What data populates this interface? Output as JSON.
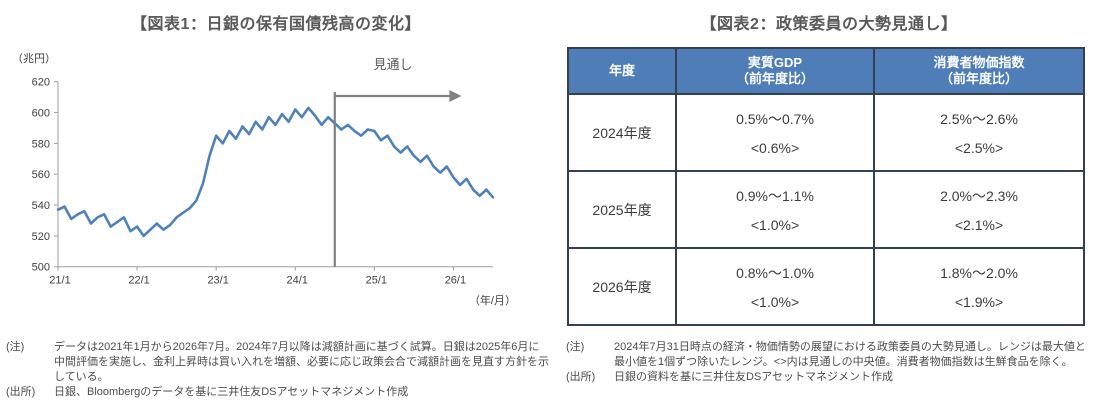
{
  "chart_data": [
    {
      "type": "line",
      "title": "【図表1：日銀の保有国債残高の変化】",
      "ylabel": "（兆円）",
      "xlabel": "（年/月）",
      "ylim": [
        500,
        620
      ],
      "ytick_step": 20,
      "x_ticks": [
        "21/1",
        "22/1",
        "23/1",
        "24/1",
        "25/1",
        "26/1"
      ],
      "x_start": "2021/1",
      "x_end": "2026/7",
      "grid": "off",
      "legend": "none",
      "forecast_label": "見通し",
      "forecast_start": "2024/8",
      "divider_index": 42,
      "line_color": "#4F81BD",
      "divider_color": "#808080",
      "series": [
        {
          "name": "日銀の保有国債残高",
          "values": [
            537,
            539,
            531,
            534,
            536,
            528,
            532,
            534,
            526,
            529,
            532,
            523,
            526,
            520,
            524,
            528,
            524,
            527,
            532,
            535,
            538,
            543,
            554,
            572,
            585,
            580,
            588,
            583,
            591,
            586,
            594,
            589,
            597,
            592,
            599,
            594,
            602,
            597,
            603,
            598,
            592,
            597,
            593,
            589,
            592,
            588,
            585,
            589,
            588,
            582,
            585,
            578,
            574,
            578,
            572,
            568,
            572,
            565,
            561,
            565,
            558,
            553,
            557,
            550,
            546,
            550,
            545
          ]
        }
      ]
    },
    {
      "type": "table",
      "title": "【図表2：政策委員の大勢見通し】",
      "header_bg": "#4E7DB7",
      "columns": [
        "年度",
        "実質GDP\n（前年度比）",
        "消費者物価指数\n（前年度比）"
      ],
      "rows": [
        [
          "2024年度",
          "0.5%～0.7%",
          "<0.6%>",
          "2.5%～2.6%",
          "<2.5%>"
        ],
        [
          "2025年度",
          "0.9%～1.1%",
          "<1.0%>",
          "2.0%～2.3%",
          "<2.1%>"
        ],
        [
          "2026年度",
          "0.8%～1.0%",
          "<1.0%>",
          "1.8%～2.0%",
          "<1.9%>"
        ]
      ]
    }
  ],
  "notes": {
    "left": {
      "note_label": "(注)",
      "note_text": "データは2021年1月から2026年7月。2024年7月以降は減額計画に基づく試算。日銀は2025年6月に中間評価を実施し、金利上昇時は買い入れを増額、必要に応じ政策会合で減額計画を見直す方針を示している。",
      "source_label": "(出所)",
      "source_text": "日銀、Bloombergのデータを基に三井住友DSアセットマネジメント作成"
    },
    "right": {
      "note_label": "(注)",
      "note_text": "2024年7月31日時点の経済・物価情勢の展望における政策委員の大勢見通し。レンジは最大値と最小値を1個ずつ除いたレンジ。<>内は見通しの中央値。消費者物価指数は生鮮食品を除く。",
      "source_label": "(出所)",
      "source_text": "日銀の資料を基に三井住友DSアセットマネジメント作成"
    }
  }
}
